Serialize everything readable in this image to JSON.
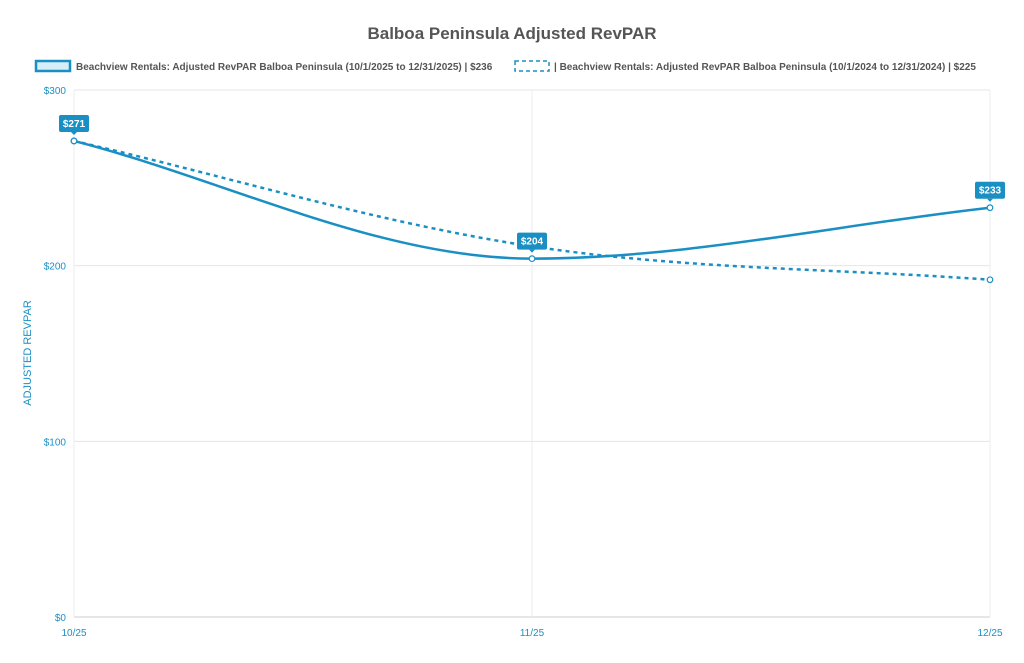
{
  "chart_data": {
    "type": "line",
    "title": "Balboa Peninsula Adjusted RevPAR",
    "xlabel": "",
    "ylabel": "ADJUSTED REVPAR",
    "categories": [
      "10/25",
      "11/25",
      "12/25"
    ],
    "ylim": [
      0,
      300
    ],
    "yticks": [
      {
        "value": 0,
        "label": "$0"
      },
      {
        "value": 100,
        "label": "$100"
      },
      {
        "value": 200,
        "label": "$200"
      },
      {
        "value": 300,
        "label": "$300"
      }
    ],
    "grid": true,
    "legend_position": "top",
    "series": [
      {
        "name": "Beachview Rentals: Adjusted RevPAR Balboa Peninsula  (10/1/2025 to 12/31/2025) | $236",
        "values": [
          271,
          204,
          233
        ],
        "data_labels": [
          "$271",
          "$204",
          "$233"
        ],
        "style": "solid",
        "color": "#1a8fc3"
      },
      {
        "name": "| Beachview Rentals: Adjusted RevPAR Balboa Peninsula  (10/1/2024 to 12/31/2024) | $225",
        "values": [
          271,
          211,
          192
        ],
        "style": "dashed",
        "color": "#1a8fc3"
      }
    ]
  }
}
